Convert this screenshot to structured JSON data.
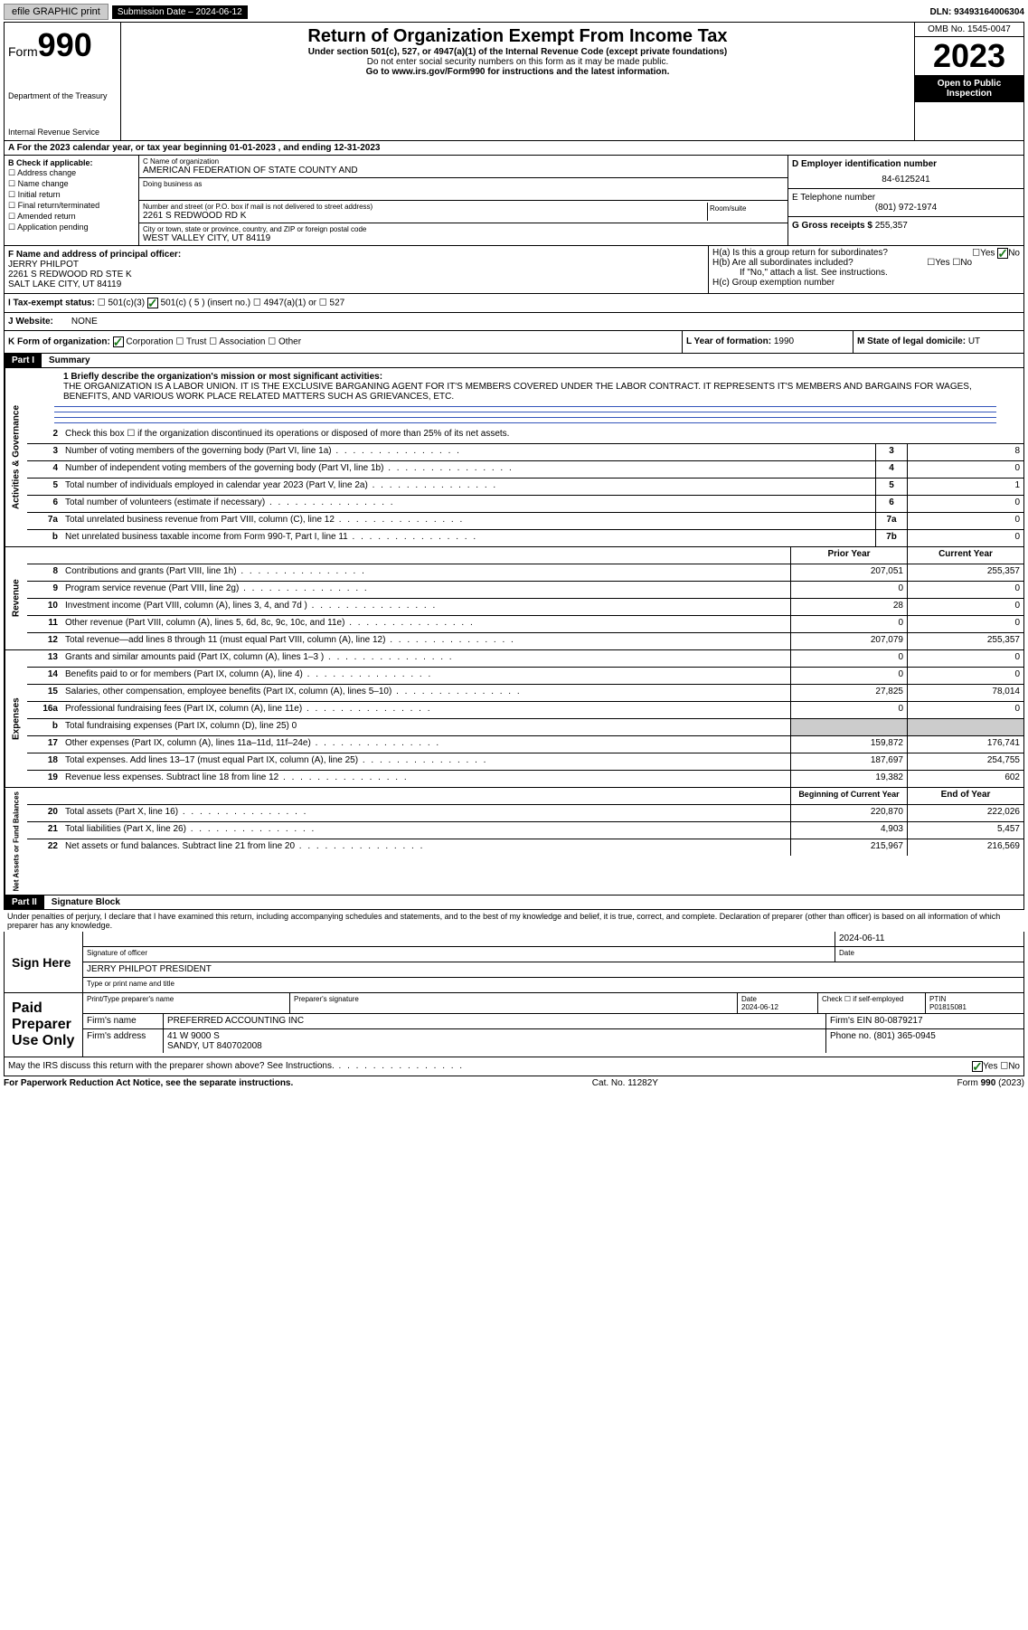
{
  "topbar": {
    "efile_label": "efile GRAPHIC print",
    "submission_label": "Submission Date – 2024-06-12",
    "dln_label": "DLN: 93493164006304"
  },
  "header": {
    "form_prefix": "Form",
    "form_num": "990",
    "dept": "Department of the Treasury",
    "irs": "Internal Revenue Service",
    "title": "Return of Organization Exempt From Income Tax",
    "sub": "Under section 501(c), 527, or 4947(a)(1) of the Internal Revenue Code (except private foundations)",
    "ssn": "Do not enter social security numbers on this form as it may be made public.",
    "goto": "Go to www.irs.gov/Form990 for instructions and the latest information.",
    "omb": "OMB No. 1545-0047",
    "year": "2023",
    "open": "Open to Public Inspection"
  },
  "rowA": "A For the 2023 calendar year, or tax year beginning 01-01-2023    , and ending 12-31-2023",
  "boxB": {
    "label": "B Check if applicable:",
    "items": [
      "Address change",
      "Name change",
      "Initial return",
      "Final return/terminated",
      "Amended return",
      "Application pending"
    ]
  },
  "boxC": {
    "name_lbl": "C Name of organization",
    "name": "AMERICAN FEDERATION OF STATE COUNTY AND",
    "dba_lbl": "Doing business as",
    "addr_lbl": "Number and street (or P.O. box if mail is not delivered to street address)",
    "room_lbl": "Room/suite",
    "addr": "2261 S REDWOOD RD K",
    "city_lbl": "City or town, state or province, country, and ZIP or foreign postal code",
    "city": "WEST VALLEY CITY, UT  84119"
  },
  "boxD": {
    "lbl": "D Employer identification number",
    "val": "84-6125241",
    "e_lbl": "E Telephone number",
    "e_val": "(801) 972-1974",
    "g_lbl": "G Gross receipts $",
    "g_val": "255,357"
  },
  "boxF": {
    "lbl": "F  Name and address of principal officer:",
    "name": "JERRY PHILPOT",
    "addr1": "2261 S REDWOOD RD STE K",
    "addr2": "SALT LAKE CITY, UT  84119"
  },
  "boxH": {
    "ha": "H(a)  Is this a group return for subordinates?",
    "hb": "H(b)  Are all subordinates included?",
    "hb2": "If \"No,\" attach a list. See instructions.",
    "hc": "H(c)  Group exemption number"
  },
  "rowI": {
    "lbl": "I    Tax-exempt status:",
    "opts": [
      "501(c)(3)",
      "501(c) ( 5 ) (insert no.)",
      "4947(a)(1) or",
      "527"
    ]
  },
  "rowJ": {
    "lbl": "J    Website:",
    "val": "NONE"
  },
  "rowK": {
    "lbl": "K Form of organization:",
    "opts": [
      "Corporation",
      "Trust",
      "Association",
      "Other"
    ]
  },
  "rowL": {
    "lbl": "L Year of formation:",
    "val": "1990"
  },
  "rowM": {
    "lbl": "M State of legal domicile:",
    "val": "UT"
  },
  "part1": {
    "label": "Part I",
    "title": "Summary",
    "mission_lbl": "1   Briefly describe the organization's mission or most significant activities:",
    "mission": "THE ORGANIZATION IS A LABOR UNION. IT IS THE EXCLUSIVE BARGANING AGENT FOR IT'S MEMBERS COVERED UNDER THE LABOR CONTRACT. IT REPRESENTS IT'S MEMBERS AND BARGAINS FOR WAGES, BENEFITS, AND VARIOUS WORK PLACE RELATED MATTERS SUCH AS GRIEVANCES, ETC.",
    "line2": "Check this box ☐ if the organization discontinued its operations or disposed of more than 25% of its net assets.",
    "vlabels": {
      "gov": "Activities & Governance",
      "rev": "Revenue",
      "exp": "Expenses",
      "net": "Net Assets or Fund Balances"
    },
    "gov_lines": [
      {
        "n": "3",
        "d": "Number of voting members of the governing body (Part VI, line 1a)",
        "box": "3",
        "v": "8"
      },
      {
        "n": "4",
        "d": "Number of independent voting members of the governing body (Part VI, line 1b)",
        "box": "4",
        "v": "0"
      },
      {
        "n": "5",
        "d": "Total number of individuals employed in calendar year 2023 (Part V, line 2a)",
        "box": "5",
        "v": "1"
      },
      {
        "n": "6",
        "d": "Total number of volunteers (estimate if necessary)",
        "box": "6",
        "v": "0"
      },
      {
        "n": "7a",
        "d": "Total unrelated business revenue from Part VIII, column (C), line 12",
        "box": "7a",
        "v": "0"
      },
      {
        "n": "b",
        "d": "Net unrelated business taxable income from Form 990-T, Part I, line 11",
        "box": "7b",
        "v": "0"
      }
    ],
    "col_headers": {
      "prior": "Prior Year",
      "current": "Current Year",
      "begin": "Beginning of Current Year",
      "end": "End of Year"
    },
    "rev_lines": [
      {
        "n": "8",
        "d": "Contributions and grants (Part VIII, line 1h)",
        "p": "207,051",
        "c": "255,357"
      },
      {
        "n": "9",
        "d": "Program service revenue (Part VIII, line 2g)",
        "p": "0",
        "c": "0"
      },
      {
        "n": "10",
        "d": "Investment income (Part VIII, column (A), lines 3, 4, and 7d )",
        "p": "28",
        "c": "0"
      },
      {
        "n": "11",
        "d": "Other revenue (Part VIII, column (A), lines 5, 6d, 8c, 9c, 10c, and 11e)",
        "p": "0",
        "c": "0"
      },
      {
        "n": "12",
        "d": "Total revenue—add lines 8 through 11 (must equal Part VIII, column (A), line 12)",
        "p": "207,079",
        "c": "255,357"
      }
    ],
    "exp_lines": [
      {
        "n": "13",
        "d": "Grants and similar amounts paid (Part IX, column (A), lines 1–3 )",
        "p": "0",
        "c": "0"
      },
      {
        "n": "14",
        "d": "Benefits paid to or for members (Part IX, column (A), line 4)",
        "p": "0",
        "c": "0"
      },
      {
        "n": "15",
        "d": "Salaries, other compensation, employee benefits (Part IX, column (A), lines 5–10)",
        "p": "27,825",
        "c": "78,014"
      },
      {
        "n": "16a",
        "d": "Professional fundraising fees (Part IX, column (A), line 11e)",
        "p": "0",
        "c": "0"
      },
      {
        "n": "b",
        "d": "Total fundraising expenses (Part IX, column (D), line 25) 0",
        "p": "",
        "c": "",
        "shaded": true
      },
      {
        "n": "17",
        "d": "Other expenses (Part IX, column (A), lines 11a–11d, 11f–24e)",
        "p": "159,872",
        "c": "176,741"
      },
      {
        "n": "18",
        "d": "Total expenses. Add lines 13–17 (must equal Part IX, column (A), line 25)",
        "p": "187,697",
        "c": "254,755"
      },
      {
        "n": "19",
        "d": "Revenue less expenses. Subtract line 18 from line 12",
        "p": "19,382",
        "c": "602"
      }
    ],
    "net_lines": [
      {
        "n": "20",
        "d": "Total assets (Part X, line 16)",
        "p": "220,870",
        "c": "222,026"
      },
      {
        "n": "21",
        "d": "Total liabilities (Part X, line 26)",
        "p": "4,903",
        "c": "5,457"
      },
      {
        "n": "22",
        "d": "Net assets or fund balances. Subtract line 21 from line 20",
        "p": "215,967",
        "c": "216,569"
      }
    ]
  },
  "part2": {
    "label": "Part II",
    "title": "Signature Block",
    "perjury": "Under penalties of perjury, I declare that I have examined this return, including accompanying schedules and statements, and to the best of my knowledge and belief, it is true, correct, and complete. Declaration of preparer (other than officer) is based on all information of which preparer has any knowledge."
  },
  "sign": {
    "label": "Sign Here",
    "sig_lbl": "Signature of officer",
    "date": "2024-06-11",
    "date_lbl": "Date",
    "name": "JERRY PHILPOT PRESIDENT",
    "name_lbl": "Type or print name and title"
  },
  "paid": {
    "label": "Paid Preparer Use Only",
    "cols": {
      "name_lbl": "Print/Type preparer's name",
      "sig_lbl": "Preparer's signature",
      "date_lbl": "Date",
      "date": "2024-06-12",
      "check_lbl": "Check ☐ if self-employed",
      "ptin_lbl": "PTIN",
      "ptin": "P01815081"
    },
    "firm_name_lbl": "Firm's name",
    "firm_name": "PREFERRED ACCOUNTING INC",
    "firm_ein_lbl": "Firm's EIN",
    "firm_ein": "80-0879217",
    "firm_addr_lbl": "Firm's address",
    "firm_addr": "41 W 9000 S",
    "firm_city": "SANDY, UT  840702008",
    "phone_lbl": "Phone no.",
    "phone": "(801) 365-0945"
  },
  "discuss": "May the IRS discuss this return with the preparer shown above? See Instructions.",
  "footer": {
    "left": "For Paperwork Reduction Act Notice, see the separate instructions.",
    "mid": "Cat. No. 11282Y",
    "right": "Form 990 (2023)"
  },
  "yn": {
    "yes": "Yes",
    "no": "No"
  }
}
